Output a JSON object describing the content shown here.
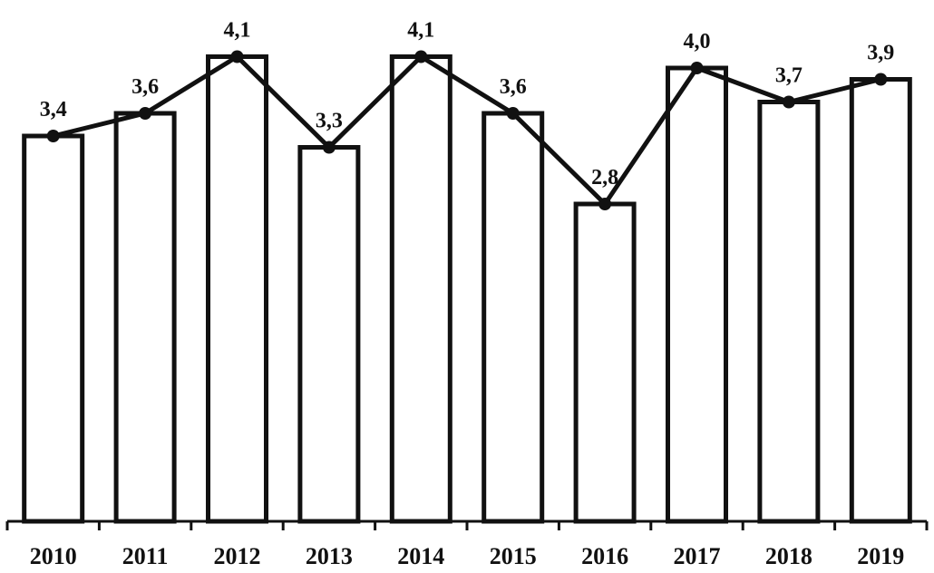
{
  "chart_data": {
    "type": "bar",
    "categories": [
      "2010",
      "2011",
      "2012",
      "2013",
      "2014",
      "2015",
      "2016",
      "2017",
      "2018",
      "2019"
    ],
    "values": [
      3.4,
      3.6,
      4.1,
      3.3,
      4.1,
      3.6,
      2.8,
      4.0,
      3.7,
      3.9
    ],
    "value_labels": [
      "3,4",
      "3,6",
      "4,1",
      "3,3",
      "4,1",
      "3,6",
      "2,8",
      "4,0",
      "3,7",
      "3,9"
    ],
    "overlay_line": true,
    "title": "",
    "xlabel": "",
    "ylabel": "",
    "ylim": [
      0,
      4.2
    ],
    "grid": false,
    "colors": {
      "bar_fill": "#ffffff",
      "stroke": "#111111"
    }
  }
}
